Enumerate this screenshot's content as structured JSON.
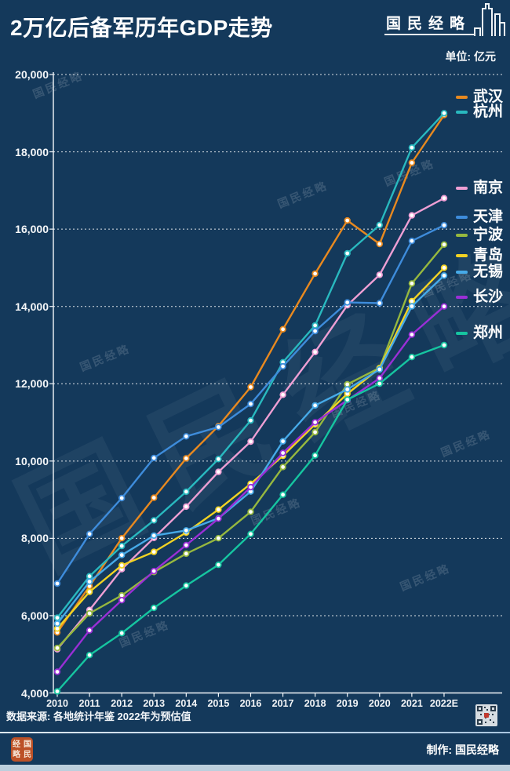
{
  "header": {
    "title": "2万亿后备军历年GDP走势",
    "logo_text": "国民经略",
    "unit_label": "单位: 亿元"
  },
  "chart_data": {
    "type": "line",
    "title": "2万亿后备军历年GDP走势",
    "unit": "亿元",
    "categories": [
      "2010",
      "2011",
      "2012",
      "2013",
      "2014",
      "2015",
      "2016",
      "2017",
      "2018",
      "2019",
      "2020",
      "2021",
      "2022E"
    ],
    "ylim": [
      4000,
      20000
    ],
    "ytick_step": 2000,
    "grid": "horizontal-dashed",
    "legend_position": "right",
    "marker": "white-filled-dot",
    "series": [
      {
        "name": "武汉",
        "color": "#E8891F",
        "values": [
          5566,
          6762,
          8004,
          9051,
          10069,
          10906,
          11913,
          13410,
          14847,
          16223,
          15616,
          17717,
          18950
        ]
      },
      {
        "name": "杭州",
        "color": "#29B9BF",
        "values": [
          5946,
          7019,
          7802,
          8466,
          9206,
          10050,
          11050,
          12556,
          13509,
          15373,
          16106,
          18109,
          19000
        ]
      },
      {
        "name": "南京",
        "color": "#EE9FD4",
        "values": [
          5131,
          6146,
          7202,
          8012,
          8821,
          9721,
          10503,
          11715,
          12820,
          14030,
          14818,
          16355,
          16800
        ]
      },
      {
        "name": "天津",
        "color": "#3E8CDB",
        "values": [
          6831,
          8113,
          9043,
          10080,
          10640,
          10879,
          11477,
          12450,
          13363,
          14104,
          14084,
          15695,
          16100
        ]
      },
      {
        "name": "宁波",
        "color": "#96B83F",
        "values": [
          5163,
          6059,
          6525,
          7129,
          7603,
          8004,
          8686,
          9847,
          10746,
          11985,
          12409,
          14595,
          15600
        ]
      },
      {
        "name": "青岛",
        "color": "#F2D323",
        "values": [
          5666,
          6616,
          7302,
          7650,
          8150,
          8745,
          9411,
          10137,
          10949,
          11741,
          12401,
          14136,
          15000
        ]
      },
      {
        "name": "无锡",
        "color": "#46AAE8",
        "values": [
          5793,
          6880,
          7568,
          8070,
          8205,
          8518,
          9210,
          10512,
          11439,
          11852,
          12370,
          14003,
          14800
        ]
      },
      {
        "name": "长沙",
        "color": "#9A2FD6",
        "values": [
          4547,
          5619,
          6400,
          7153,
          7825,
          8510,
          9324,
          10210,
          11003,
          11574,
          12143,
          13271,
          14000
        ]
      },
      {
        "name": "郑州",
        "color": "#16C5A0",
        "values": [
          4041,
          4980,
          5547,
          6202,
          6777,
          7315,
          8114,
          9130,
          10144,
          11590,
          12003,
          12691,
          13000
        ]
      }
    ]
  },
  "footnote": {
    "source_text": "数据来源: 各地统计年鉴  2022年为预估值"
  },
  "footer": {
    "credit_label": "制作: 国民经略",
    "seal_chars": [
      "经",
      "国",
      "略",
      "民"
    ]
  },
  "watermark": {
    "text": "国民经略"
  },
  "colors": {
    "background": "#14395B",
    "grid": "#FFFFFF",
    "text": "#FFFFFF",
    "seal": "#BC5127"
  }
}
